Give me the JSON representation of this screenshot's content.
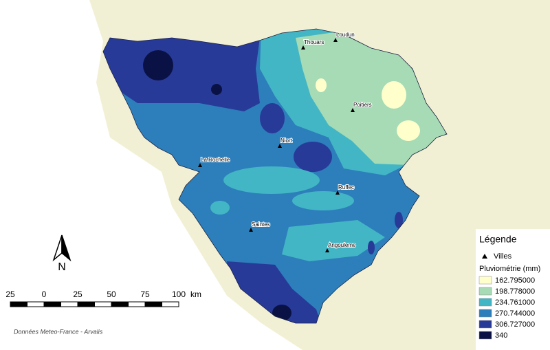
{
  "cities": [
    {
      "name": "Thouars"
    },
    {
      "name": "Loudun"
    },
    {
      "name": "Poitiers"
    },
    {
      "name": "Niort"
    },
    {
      "name": "La Rochelle"
    },
    {
      "name": "Ruffec"
    },
    {
      "name": "Saintes"
    },
    {
      "name": "Angouleme"
    }
  ],
  "legend": {
    "title": "Légende",
    "cities_label": "Villes",
    "rain_title": "Pluviométrie (mm)",
    "classes": [
      {
        "label": "162.795000",
        "color": "#ffffcc"
      },
      {
        "label": "198.778000",
        "color": "#a6dbb5"
      },
      {
        "label": "234.761000",
        "color": "#43b6c5"
      },
      {
        "label": "270.744000",
        "color": "#2d7fbb"
      },
      {
        "label": "306.727000",
        "color": "#283a98"
      },
      {
        "label": "340",
        "color": "#0a1245"
      }
    ]
  },
  "scale": {
    "labels": [
      "25",
      "0",
      "25",
      "50",
      "75",
      "100"
    ],
    "unit": "km"
  },
  "north": "N",
  "credit": "Données Meteo-France - Arvalis"
}
